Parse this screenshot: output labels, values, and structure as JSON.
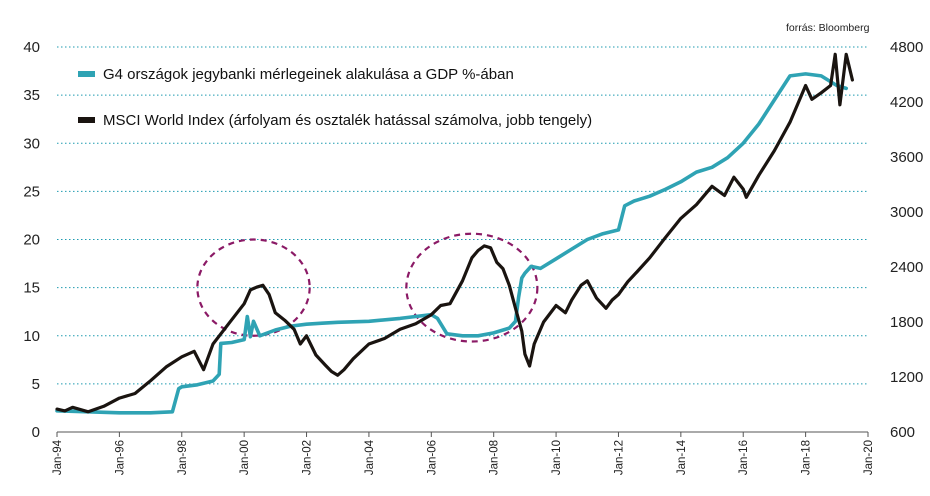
{
  "source": "forrás: Bloomberg",
  "chart_data": {
    "type": "line",
    "title": "",
    "xlabel": "",
    "ylabel": "",
    "x_ticks": [
      "Jan-94",
      "Jan-96",
      "Jan-98",
      "Jan-00",
      "Jan-02",
      "Jan-04",
      "Jan-06",
      "Jan-08",
      "Jan-10",
      "Jan-12",
      "Jan-14",
      "Jan-16",
      "Jan-18",
      "Jan-20"
    ],
    "x_range": [
      1994.0,
      2020.0
    ],
    "y_left": {
      "ticks": [
        "0",
        "5",
        "10",
        "15",
        "20",
        "25",
        "30",
        "35",
        "40"
      ],
      "range": [
        0,
        40
      ]
    },
    "y_right": {
      "ticks": [
        "600",
        "1200",
        "1800",
        "2400",
        "3000",
        "3600",
        "4200",
        "4800"
      ],
      "range": [
        600,
        4800
      ]
    },
    "grid": "horizontal dotted",
    "legend_position": "top-left",
    "highlight_circles": [
      {
        "x": 2000.3,
        "y": 15,
        "rx": 1.8,
        "ry": 5
      },
      {
        "x": 2007.3,
        "y": 15,
        "rx": 2.1,
        "ry": 5.6
      }
    ],
    "series": [
      {
        "name": "G4 országok jegybanki mérlegeinek alakulása a GDP %-ában",
        "axis": "left",
        "color": "#2fa3b4",
        "x": [
          1994.0,
          1995.0,
          1996.0,
          1997.0,
          1997.7,
          1997.9,
          1998.0,
          1998.5,
          1999.0,
          1999.2,
          1999.25,
          1999.6,
          2000.0,
          2000.1,
          2000.2,
          2000.3,
          2000.5,
          2001.0,
          2001.5,
          2002.0,
          2002.5,
          2003.0,
          2004.0,
          2005.0,
          2005.5,
          2006.0,
          2006.2,
          2006.5,
          2007.0,
          2007.5,
          2008.0,
          2008.5,
          2008.7,
          2008.8,
          2008.9,
          2009.0,
          2009.2,
          2009.5,
          2010.0,
          2010.5,
          2011.0,
          2011.5,
          2012.0,
          2012.2,
          2012.5,
          2013.0,
          2013.5,
          2014.0,
          2014.5,
          2015.0,
          2015.5,
          2016.0,
          2016.5,
          2017.0,
          2017.5,
          2018.0,
          2018.5,
          2019.0,
          2019.3
        ],
        "values": [
          2.2,
          2.1,
          2.0,
          2.0,
          2.1,
          4.5,
          4.7,
          4.9,
          5.3,
          6.0,
          9.2,
          9.3,
          9.6,
          12.0,
          9.9,
          11.5,
          10.0,
          10.6,
          11.0,
          11.2,
          11.3,
          11.4,
          11.5,
          11.8,
          12.0,
          12.2,
          11.8,
          10.2,
          10.0,
          10.0,
          10.3,
          10.8,
          11.5,
          14.0,
          16.0,
          16.5,
          17.2,
          17.0,
          18.0,
          19.0,
          20.0,
          20.6,
          21.0,
          23.5,
          24.0,
          24.5,
          25.2,
          26.0,
          27.0,
          27.5,
          28.5,
          30.0,
          32.0,
          34.5,
          37.0,
          37.2,
          37.0,
          36.0,
          35.7
        ]
      },
      {
        "name": "MSCI World Index (árfolyam és osztalék hatással számolva, jobb tengely)",
        "axis": "right",
        "color": "#1a1410",
        "x": [
          1994.0,
          1994.25,
          1994.5,
          1995.0,
          1995.5,
          1996.0,
          1996.5,
          1997.0,
          1997.5,
          1998.0,
          1998.4,
          1998.7,
          1999.0,
          1999.5,
          2000.0,
          2000.2,
          2000.4,
          2000.6,
          2000.8,
          2001.0,
          2001.3,
          2001.6,
          2001.8,
          2002.0,
          2002.3,
          2002.6,
          2002.8,
          2003.0,
          2003.2,
          2003.5,
          2004.0,
          2004.5,
          2005.0,
          2005.5,
          2006.0,
          2006.3,
          2006.6,
          2007.0,
          2007.3,
          2007.5,
          2007.7,
          2007.9,
          2008.1,
          2008.3,
          2008.5,
          2008.7,
          2008.9,
          2009.0,
          2009.15,
          2009.3,
          2009.6,
          2010.0,
          2010.3,
          2010.5,
          2010.8,
          2011.0,
          2011.3,
          2011.6,
          2011.8,
          2012.0,
          2012.3,
          2012.6,
          2013.0,
          2013.5,
          2014.0,
          2014.5,
          2015.0,
          2015.4,
          2015.7,
          2016.0,
          2016.1,
          2016.5,
          2017.0,
          2017.5,
          2018.0,
          2018.2,
          2018.5,
          2018.8,
          2018.95,
          2019.1,
          2019.3,
          2019.5
        ],
        "values": [
          850,
          830,
          870,
          820,
          880,
          970,
          1020,
          1160,
          1310,
          1420,
          1480,
          1280,
          1560,
          1780,
          2000,
          2150,
          2180,
          2200,
          2100,
          1900,
          1820,
          1720,
          1560,
          1650,
          1440,
          1330,
          1260,
          1220,
          1280,
          1400,
          1560,
          1620,
          1720,
          1780,
          1880,
          1980,
          2000,
          2250,
          2500,
          2580,
          2630,
          2610,
          2450,
          2380,
          2200,
          1950,
          1700,
          1450,
          1320,
          1560,
          1800,
          1980,
          1900,
          2040,
          2200,
          2250,
          2060,
          1950,
          2040,
          2100,
          2240,
          2350,
          2500,
          2720,
          2930,
          3080,
          3280,
          3180,
          3380,
          3250,
          3160,
          3400,
          3670,
          3980,
          4380,
          4230,
          4300,
          4380,
          4720,
          4170,
          4720,
          4440
        ]
      }
    ]
  }
}
